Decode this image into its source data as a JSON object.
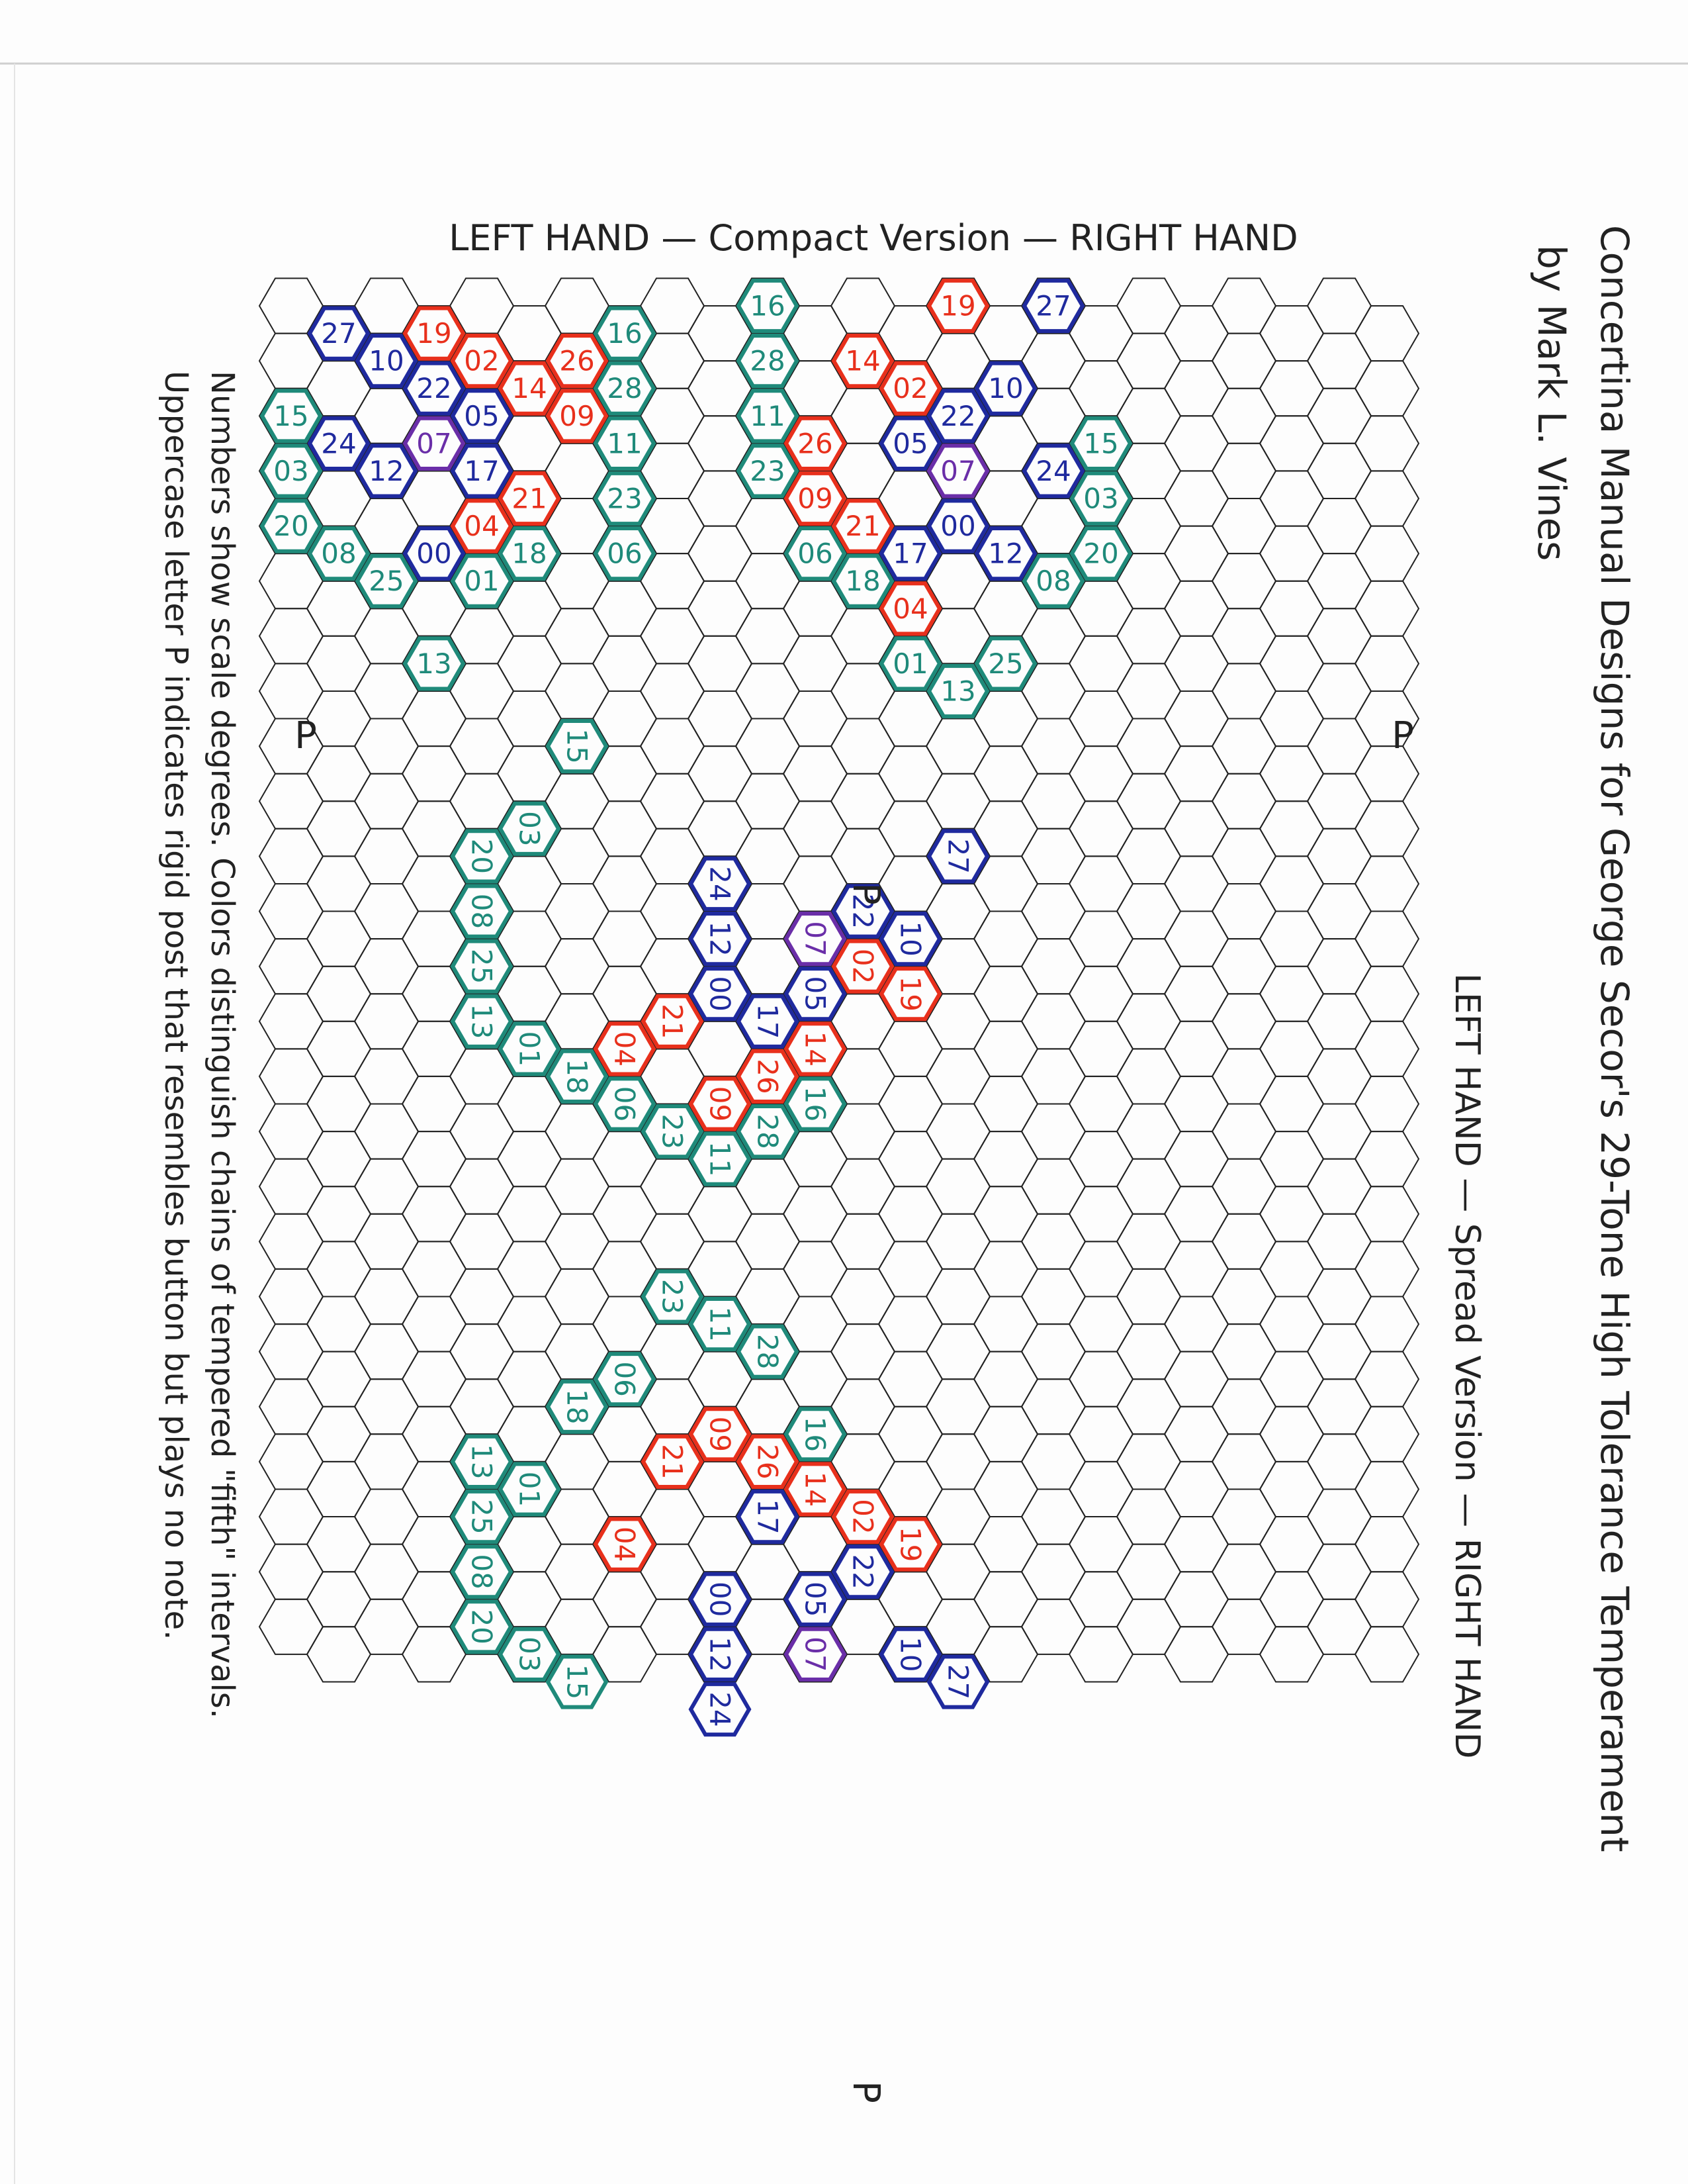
{
  "page": {
    "compact_heading": "LEFT HAND  —  Compact Version  —  RIGHT HAND",
    "title_line1": "Concertina Manual Designs for George Secor's 29-Tone High Tolerance Temperament",
    "title_line2": "by Mark L. Vines",
    "spread_heading": "LEFT HAND  —  Spread Version  —  RIGHT HAND",
    "note_line1": "Numbers show scale degrees.  Colors distinguish chains of tempered \"fifth\" intervals.",
    "note_line2": "Uppercase letter P indicates rigid post that resembles button but plays no note.",
    "post_letter": "P"
  },
  "colors": {
    "grid": "#222222",
    "blue": "#1f2a9e",
    "red": "#e8301c",
    "green": "#1f8a7a",
    "purple": "#6a2ea8",
    "ink": "#222222"
  },
  "compact_left": [
    {
      "label": "27",
      "color": "blue"
    },
    {
      "label": "19",
      "color": "red"
    },
    {
      "label": "10",
      "color": "blue"
    },
    {
      "label": "02",
      "color": "red"
    },
    {
      "label": "22",
      "color": "blue"
    },
    {
      "label": "14",
      "color": "red"
    },
    {
      "label": "15",
      "color": "green"
    },
    {
      "label": "24",
      "color": "blue"
    },
    {
      "label": "07",
      "color": "purple"
    },
    {
      "label": "05",
      "color": "blue"
    },
    {
      "label": "26",
      "color": "red"
    },
    {
      "label": "03",
      "color": "green"
    },
    {
      "label": "12",
      "color": "blue"
    },
    {
      "label": "17",
      "color": "blue"
    },
    {
      "label": "09",
      "color": "red"
    },
    {
      "label": "00",
      "color": "blue"
    },
    {
      "label": "21",
      "color": "red"
    },
    {
      "label": "20",
      "color": "green"
    },
    {
      "label": "04",
      "color": "red"
    },
    {
      "label": "06",
      "color": "green"
    },
    {
      "label": "08",
      "color": "green"
    },
    {
      "label": "18",
      "color": "green"
    },
    {
      "label": "25",
      "color": "green"
    },
    {
      "label": "01",
      "color": "green"
    },
    {
      "label": "13",
      "color": "green"
    },
    {
      "label": "16",
      "color": "green"
    },
    {
      "label": "28",
      "color": "green"
    },
    {
      "label": "11",
      "color": "green"
    },
    {
      "label": "23",
      "color": "green"
    }
  ],
  "compact_right": [
    {
      "label": "16",
      "color": "green"
    },
    {
      "label": "19",
      "color": "red"
    },
    {
      "label": "27",
      "color": "blue"
    },
    {
      "label": "28",
      "color": "green"
    },
    {
      "label": "02",
      "color": "red"
    },
    {
      "label": "10",
      "color": "blue"
    },
    {
      "label": "14",
      "color": "red"
    },
    {
      "label": "22",
      "color": "blue"
    },
    {
      "label": "26",
      "color": "red"
    },
    {
      "label": "05",
      "color": "blue"
    },
    {
      "label": "15",
      "color": "green"
    },
    {
      "label": "11",
      "color": "green"
    },
    {
      "label": "07",
      "color": "purple"
    },
    {
      "label": "24",
      "color": "blue"
    },
    {
      "label": "09",
      "color": "red"
    },
    {
      "label": "17",
      "color": "blue"
    },
    {
      "label": "12",
      "color": "blue"
    },
    {
      "label": "03",
      "color": "green"
    },
    {
      "label": "23",
      "color": "green"
    },
    {
      "label": "21",
      "color": "red"
    },
    {
      "label": "00",
      "color": "blue"
    },
    {
      "label": "06",
      "color": "green"
    },
    {
      "label": "04",
      "color": "red"
    },
    {
      "label": "20",
      "color": "green"
    },
    {
      "label": "18",
      "color": "green"
    },
    {
      "label": "08",
      "color": "green"
    },
    {
      "label": "01",
      "color": "green"
    },
    {
      "label": "25",
      "color": "green"
    },
    {
      "label": "13",
      "color": "green"
    }
  ],
  "spread_left": [
    {
      "label": "15",
      "color": "green"
    },
    {
      "label": "03",
      "color": "green"
    },
    {
      "label": "20",
      "color": "green"
    },
    {
      "label": "08",
      "color": "green"
    },
    {
      "label": "25",
      "color": "green"
    },
    {
      "label": "13",
      "color": "green"
    },
    {
      "label": "01",
      "color": "green"
    },
    {
      "label": "18",
      "color": "green"
    },
    {
      "label": "06",
      "color": "green"
    },
    {
      "label": "23",
      "color": "green"
    },
    {
      "label": "11",
      "color": "green"
    },
    {
      "label": "28",
      "color": "green"
    },
    {
      "label": "16",
      "color": "green"
    },
    {
      "label": "04",
      "color": "red"
    },
    {
      "label": "21",
      "color": "red"
    },
    {
      "label": "09",
      "color": "red"
    },
    {
      "label": "26",
      "color": "red"
    },
    {
      "label": "14",
      "color": "red"
    },
    {
      "label": "02",
      "color": "red"
    },
    {
      "label": "19",
      "color": "red"
    },
    {
      "label": "24",
      "color": "blue"
    },
    {
      "label": "12",
      "color": "blue"
    },
    {
      "label": "00",
      "color": "blue"
    },
    {
      "label": "17",
      "color": "blue"
    },
    {
      "label": "05",
      "color": "blue"
    },
    {
      "label": "22",
      "color": "blue"
    },
    {
      "label": "10",
      "color": "blue"
    },
    {
      "label": "27",
      "color": "blue"
    },
    {
      "label": "07",
      "color": "purple"
    }
  ],
  "spread_right": [
    {
      "label": "23",
      "color": "green"
    },
    {
      "label": "06",
      "color": "green"
    },
    {
      "label": "11",
      "color": "green"
    },
    {
      "label": "18",
      "color": "green"
    },
    {
      "label": "28",
      "color": "green"
    },
    {
      "label": "01",
      "color": "green"
    },
    {
      "label": "16",
      "color": "green"
    },
    {
      "label": "13",
      "color": "green"
    },
    {
      "label": "25",
      "color": "green"
    },
    {
      "label": "08",
      "color": "green"
    },
    {
      "label": "20",
      "color": "green"
    },
    {
      "label": "03",
      "color": "green"
    },
    {
      "label": "15",
      "color": "green"
    },
    {
      "label": "09",
      "color": "red"
    },
    {
      "label": "21",
      "color": "red"
    },
    {
      "label": "04",
      "color": "red"
    },
    {
      "label": "26",
      "color": "red"
    },
    {
      "label": "14",
      "color": "red"
    },
    {
      "label": "02",
      "color": "red"
    },
    {
      "label": "19",
      "color": "red"
    },
    {
      "label": "17",
      "color": "blue"
    },
    {
      "label": "00",
      "color": "blue"
    },
    {
      "label": "05",
      "color": "blue"
    },
    {
      "label": "22",
      "color": "blue"
    },
    {
      "label": "12",
      "color": "blue"
    },
    {
      "label": "10",
      "color": "blue"
    },
    {
      "label": "24",
      "color": "blue"
    },
    {
      "label": "27",
      "color": "blue"
    },
    {
      "label": "07",
      "color": "purple"
    }
  ]
}
